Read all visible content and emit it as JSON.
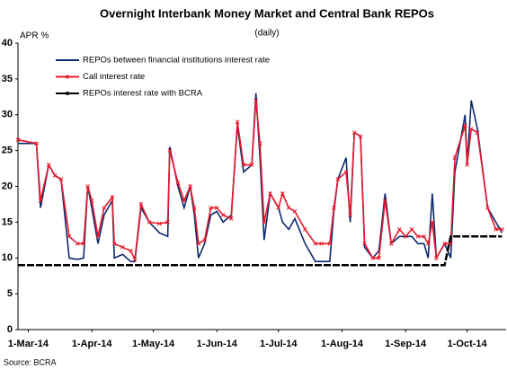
{
  "chart_data": {
    "type": "line",
    "title": "Overnight Interbank Money Market and Central Bank REPOs",
    "subtitle": "(daily)",
    "y_label": "APR %",
    "source": "Source: BCRA",
    "legend": "upper left",
    "x": [
      "2014-02-24",
      "2014-03-05",
      "2014-03-07",
      "2014-03-11",
      "2014-03-14",
      "2014-03-17",
      "2014-03-21",
      "2014-03-25",
      "2014-03-28",
      "2014-03-30",
      "2014-04-01",
      "2014-04-04",
      "2014-04-07",
      "2014-04-11",
      "2014-04-12",
      "2014-04-16",
      "2014-04-20",
      "2014-04-22",
      "2014-04-25",
      "2014-04-29",
      "2014-05-04",
      "2014-05-08",
      "2014-05-09",
      "2014-05-13",
      "2014-05-16",
      "2014-05-19",
      "2014-05-21",
      "2014-05-23",
      "2014-05-26",
      "2014-05-29",
      "2014-06-01",
      "2014-06-04",
      "2014-06-08",
      "2014-06-11",
      "2014-06-14",
      "2014-06-18",
      "2014-06-20",
      "2014-06-22",
      "2014-06-24",
      "2014-06-27",
      "2014-07-01",
      "2014-07-03",
      "2014-07-06",
      "2014-07-09",
      "2014-07-14",
      "2014-07-19",
      "2014-07-22",
      "2014-07-26",
      "2014-07-28",
      "2014-07-30",
      "2014-08-03",
      "2014-08-05",
      "2014-08-07",
      "2014-08-10",
      "2014-08-12",
      "2014-08-16",
      "2014-08-19",
      "2014-08-22",
      "2014-08-25",
      "2014-08-29",
      "2014-09-01",
      "2014-09-04",
      "2014-09-07",
      "2014-09-10",
      "2014-09-12",
      "2014-09-14",
      "2014-09-16",
      "2014-09-20",
      "2014-09-23",
      "2014-09-25",
      "2014-09-30",
      "2014-10-01",
      "2014-10-03",
      "2014-10-06",
      "2014-10-11",
      "2014-10-15",
      "2014-10-18"
    ],
    "series": [
      {
        "name": "REPOs between financial institutions interest rate",
        "color": "#0d2a6e",
        "values": [
          26,
          26,
          17,
          23,
          21.5,
          21,
          10,
          9.8,
          10,
          20,
          17,
          12,
          16,
          18,
          10,
          10.5,
          9.5,
          9.5,
          17,
          15,
          13.5,
          13,
          25.5,
          20,
          17,
          20,
          16,
          10,
          12,
          16,
          16.5,
          15,
          16,
          28.5,
          22,
          23,
          33,
          24,
          12.5,
          19,
          17,
          15,
          14,
          15.5,
          12,
          9.5,
          9.5,
          9.5,
          16.5,
          21,
          24,
          15,
          27.5,
          27,
          11.5,
          10,
          11,
          19,
          12,
          13,
          13,
          13,
          12,
          12,
          10,
          19,
          10,
          12,
          10,
          22,
          30,
          23,
          32,
          28,
          17,
          15,
          13.5
        ]
      },
      {
        "name": "Call interest rate",
        "color": "#e8192c",
        "marker": "x",
        "values": [
          26.5,
          26,
          18,
          23,
          21.5,
          21,
          13,
          12,
          12,
          20,
          18,
          13,
          17,
          18.5,
          12,
          11.5,
          11,
          9.8,
          17.5,
          15,
          14.8,
          15,
          25,
          20.5,
          18,
          20,
          17,
          12,
          12.5,
          17,
          17,
          16,
          15.5,
          29,
          23,
          23,
          32,
          26,
          15,
          19,
          17,
          19,
          17,
          16.5,
          14,
          12,
          12,
          12,
          17,
          21,
          22,
          16,
          27.5,
          27,
          12,
          10,
          10,
          18,
          12,
          14,
          13,
          14,
          13,
          13,
          12,
          15,
          10,
          12,
          12,
          24,
          28.5,
          23,
          28,
          27.5,
          17,
          14,
          14
        ]
      },
      {
        "name": "REPOs interest rate with BCRA",
        "color": "#000000",
        "values": [
          9,
          9,
          9,
          9,
          9,
          9,
          9,
          9,
          9,
          9,
          9,
          9,
          9,
          9,
          9,
          9,
          9,
          9,
          9,
          9,
          9,
          9,
          9,
          9,
          9,
          9,
          9,
          9,
          9,
          9,
          9,
          9,
          9,
          9,
          9,
          9,
          9,
          9,
          9,
          9,
          9,
          9,
          9,
          9,
          9,
          9,
          9,
          9,
          9,
          9,
          9,
          9,
          9,
          9,
          9,
          9,
          9,
          9,
          9,
          9,
          9,
          9,
          9,
          9,
          9,
          9,
          9,
          9,
          13,
          13,
          13,
          13,
          13,
          13,
          13,
          13,
          13
        ]
      }
    ],
    "xlim": [
      "2014-02-24",
      "2014-10-20"
    ],
    "xticks": [
      {
        "value": "2014-03-01",
        "label": "1-Mar-14"
      },
      {
        "value": "2014-04-01",
        "label": "1-Apr-14"
      },
      {
        "value": "2014-05-01",
        "label": "1-May-14"
      },
      {
        "value": "2014-06-01",
        "label": "1-Jun-14"
      },
      {
        "value": "2014-07-01",
        "label": "1-Jul-14"
      },
      {
        "value": "2014-08-01",
        "label": "1-Aug-14"
      },
      {
        "value": "2014-09-01",
        "label": "1-Sep-14"
      },
      {
        "value": "2014-10-01",
        "label": "1-Oct-14"
      }
    ],
    "ylim": [
      0,
      40
    ],
    "yticks": [
      0,
      5,
      10,
      15,
      20,
      25,
      30,
      35,
      40
    ],
    "grid": false
  }
}
